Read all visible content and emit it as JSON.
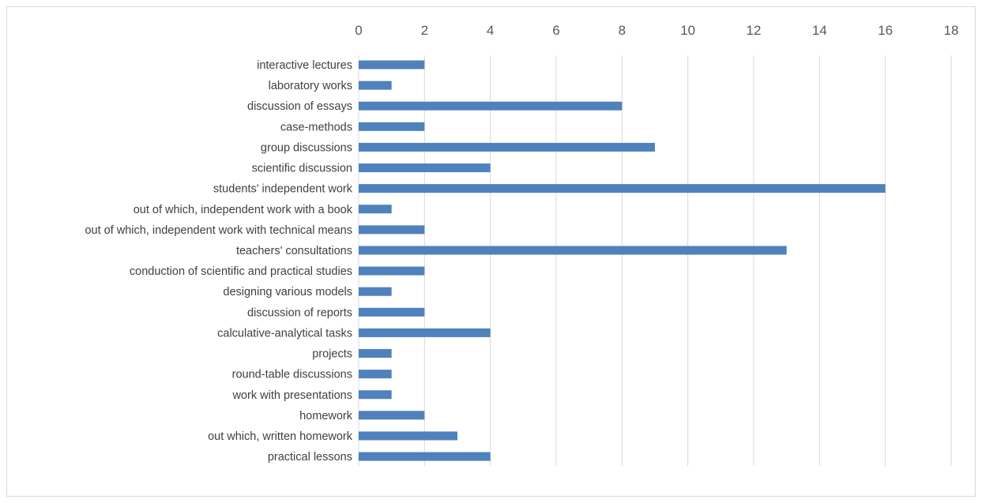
{
  "chart_data": {
    "type": "bar",
    "orientation": "horizontal",
    "categories": [
      "interactive lectures",
      "laboratory works",
      "discussion of essays",
      "case-methods",
      "group discussions",
      "scientific discussion",
      "students' independent work",
      "out of which, independent work with a book",
      "out of which, independent work with technical means",
      "teachers' consultations",
      "conduction of scientific and practical studies",
      "designing various models",
      "discussion of reports",
      "calculative-analytical tasks",
      "projects",
      "round-table discussions",
      "work with presentations",
      "homework",
      "out which, written homework",
      "practical lessons"
    ],
    "values": [
      2,
      1,
      8,
      2,
      9,
      4,
      16,
      1,
      2,
      13,
      2,
      1,
      2,
      4,
      1,
      1,
      1,
      2,
      3,
      4
    ],
    "xlim": [
      0,
      18
    ],
    "x_ticks": [
      "0",
      "2",
      "4",
      "6",
      "8",
      "10",
      "12",
      "14",
      "16",
      "18"
    ],
    "x_axis_position": "top",
    "grid": true,
    "title": "",
    "xlabel": "",
    "ylabel": "",
    "bar_color": "#4f81bd",
    "grid_color": "#d9d9d9"
  }
}
